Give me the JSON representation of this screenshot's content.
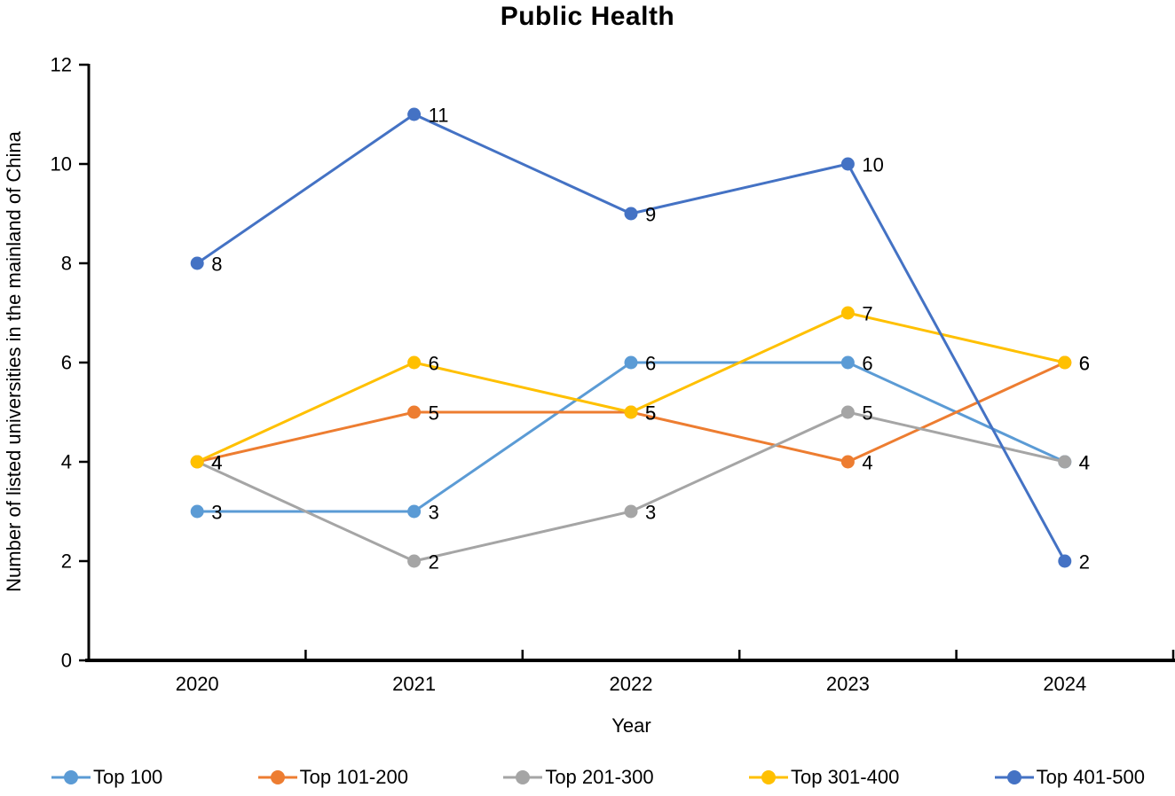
{
  "chart_data": {
    "type": "line",
    "title": "Public Health",
    "xlabel": "Year",
    "ylabel": "Number of listed universities in the mainland of China",
    "categories": [
      "2020",
      "2021",
      "2022",
      "2023",
      "2024"
    ],
    "series": [
      {
        "name": "Top 100",
        "color": "#5B9BD5",
        "values": [
          3,
          3,
          6,
          6,
          4
        ]
      },
      {
        "name": "Top 101-200",
        "color": "#ED7D31",
        "values": [
          4,
          5,
          5,
          4,
          6
        ]
      },
      {
        "name": "Top 201-300",
        "color": "#A5A5A5",
        "values": [
          4,
          2,
          3,
          5,
          4
        ]
      },
      {
        "name": "Top 301-400",
        "color": "#FFC000",
        "values": [
          4,
          6,
          5,
          7,
          6
        ]
      },
      {
        "name": "Top 401-500",
        "color": "#4472C4",
        "values": [
          8,
          11,
          9,
          10,
          2
        ]
      }
    ],
    "ylim": [
      0,
      12
    ],
    "ytick_step": 2,
    "grid": false,
    "data_labels": true,
    "legend_position": "bottom",
    "axis_color": "#000000",
    "text_color": "#000000"
  }
}
